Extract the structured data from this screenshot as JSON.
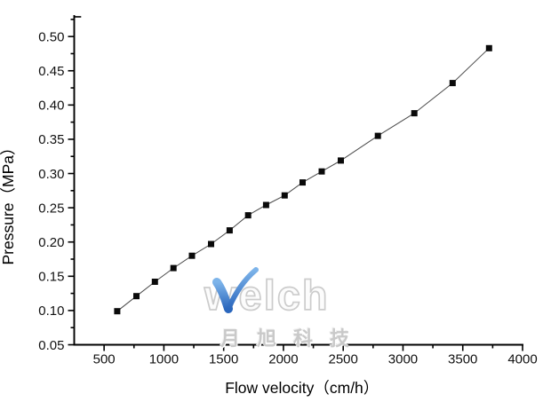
{
  "page": {
    "background": "#ffffff"
  },
  "watermark": {
    "brand": "welch",
    "subtitle": "月旭科技",
    "swoosh_blue_top": "#7db4ea",
    "swoosh_blue_bottom": "#2b67bd",
    "letter_gray": "#cccccc"
  },
  "chart_data": {
    "type": "line",
    "title": "",
    "xlabel": "Flow velocity（cm/h）",
    "ylabel": "Pressure（MPa）",
    "xlim": [
      250,
      4000
    ],
    "ylim": [
      0.05,
      0.53
    ],
    "grid": false,
    "legend": null,
    "x_major_ticks": [
      500,
      1000,
      1500,
      2000,
      2500,
      3000,
      3500,
      4000
    ],
    "x_major_labels": [
      "500",
      "1000",
      "1500",
      "2000",
      "2500",
      "3000",
      "3500",
      "4000"
    ],
    "x_minor_ticks": [
      750,
      1250,
      1750,
      2250,
      2750,
      3250,
      3750
    ],
    "y_major_ticks": [
      0.05,
      0.1,
      0.15,
      0.2,
      0.25,
      0.3,
      0.35,
      0.4,
      0.45,
      0.5
    ],
    "y_major_labels": [
      "0.05",
      "0.10",
      "0.15",
      "0.20",
      "0.25",
      "0.30",
      "0.35",
      "0.40",
      "0.45",
      "0.50"
    ],
    "y_minor_ticks": [
      0.075,
      0.125,
      0.175,
      0.225,
      0.275,
      0.325,
      0.375,
      0.425,
      0.475,
      0.525
    ],
    "axis_color": "#000000",
    "tick_label_color": "#111111",
    "series": [
      {
        "name": "pressure-vs-flow-velocity",
        "marker": "filled-square",
        "marker_color": "#0a0a0a",
        "line_color": "#4a4a4a",
        "points": [
          [
            610,
            0.099
          ],
          [
            770,
            0.121
          ],
          [
            925,
            0.142
          ],
          [
            1080,
            0.162
          ],
          [
            1235,
            0.18
          ],
          [
            1395,
            0.197
          ],
          [
            1550,
            0.217
          ],
          [
            1705,
            0.239
          ],
          [
            1855,
            0.254
          ],
          [
            2010,
            0.268
          ],
          [
            2160,
            0.287
          ],
          [
            2320,
            0.303
          ],
          [
            2480,
            0.319
          ],
          [
            2790,
            0.355
          ],
          [
            3095,
            0.388
          ],
          [
            3415,
            0.432
          ],
          [
            3720,
            0.483
          ]
        ]
      }
    ]
  }
}
